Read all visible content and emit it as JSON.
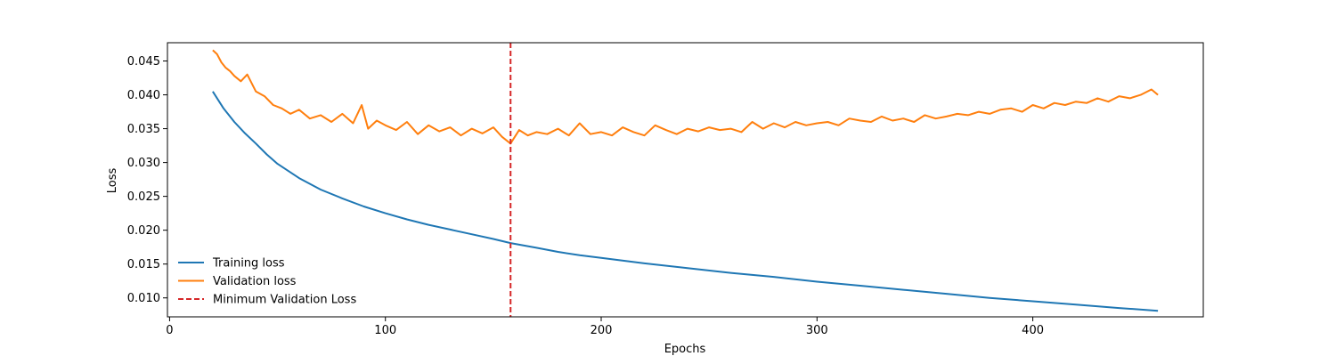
{
  "chart_data": {
    "type": "line",
    "title": "",
    "xlabel": "Epochs",
    "ylabel": "Loss",
    "xlim": [
      -1,
      479
    ],
    "ylim": [
      0.0072,
      0.0477
    ],
    "xticks": [
      0,
      100,
      200,
      300,
      400
    ],
    "yticks": [
      0.01,
      0.015,
      0.02,
      0.025,
      0.03,
      0.035,
      0.04,
      0.045
    ],
    "ytick_labels": [
      "0.010",
      "0.015",
      "0.020",
      "0.025",
      "0.030",
      "0.035",
      "0.040",
      "0.045"
    ],
    "grid": false,
    "legend_position": "lower-left",
    "series": [
      {
        "name": "Training loss",
        "color": "#1f77b4",
        "style": "solid",
        "x": [
          20,
          25,
          30,
          35,
          40,
          45,
          50,
          60,
          70,
          80,
          90,
          100,
          110,
          120,
          130,
          140,
          150,
          158,
          170,
          180,
          190,
          200,
          220,
          240,
          260,
          280,
          300,
          320,
          340,
          360,
          380,
          400,
          420,
          440,
          458
        ],
        "y": [
          0.0405,
          0.038,
          0.036,
          0.0343,
          0.0328,
          0.0312,
          0.0298,
          0.0277,
          0.026,
          0.0247,
          0.0235,
          0.0225,
          0.0216,
          0.0208,
          0.0201,
          0.0194,
          0.0187,
          0.0181,
          0.0174,
          0.0168,
          0.0163,
          0.0159,
          0.0151,
          0.0144,
          0.0137,
          0.0131,
          0.0124,
          0.0118,
          0.0112,
          0.0106,
          0.01,
          0.0095,
          0.009,
          0.0085,
          0.0081
        ]
      },
      {
        "name": "Validation loss",
        "color": "#ff7f0e",
        "style": "solid",
        "x": [
          20,
          22,
          24,
          26,
          28,
          30,
          33,
          36,
          40,
          44,
          48,
          52,
          56,
          60,
          65,
          70,
          75,
          80,
          85,
          89,
          92,
          96,
          100,
          105,
          110,
          115,
          120,
          125,
          130,
          135,
          140,
          145,
          150,
          154,
          158,
          162,
          166,
          170,
          175,
          180,
          185,
          190,
          195,
          200,
          205,
          210,
          215,
          220,
          225,
          230,
          235,
          240,
          245,
          250,
          255,
          260,
          265,
          270,
          275,
          280,
          285,
          290,
          295,
          300,
          305,
          310,
          315,
          320,
          325,
          330,
          335,
          340,
          345,
          350,
          355,
          360,
          365,
          370,
          375,
          380,
          385,
          390,
          395,
          400,
          405,
          410,
          415,
          420,
          425,
          430,
          435,
          440,
          445,
          450,
          455,
          458
        ],
        "y": [
          0.0466,
          0.046,
          0.0448,
          0.044,
          0.0435,
          0.0428,
          0.042,
          0.043,
          0.0405,
          0.0398,
          0.0385,
          0.038,
          0.0372,
          0.0378,
          0.0365,
          0.037,
          0.036,
          0.0372,
          0.0358,
          0.0385,
          0.035,
          0.0362,
          0.0355,
          0.0348,
          0.036,
          0.0342,
          0.0355,
          0.0346,
          0.0352,
          0.034,
          0.035,
          0.0343,
          0.0352,
          0.0338,
          0.0328,
          0.0348,
          0.034,
          0.0345,
          0.0342,
          0.035,
          0.034,
          0.0358,
          0.0342,
          0.0345,
          0.034,
          0.0352,
          0.0345,
          0.034,
          0.0355,
          0.0348,
          0.0342,
          0.035,
          0.0346,
          0.0352,
          0.0348,
          0.035,
          0.0345,
          0.036,
          0.035,
          0.0358,
          0.0352,
          0.036,
          0.0355,
          0.0358,
          0.036,
          0.0355,
          0.0365,
          0.0362,
          0.036,
          0.0368,
          0.0362,
          0.0365,
          0.036,
          0.037,
          0.0365,
          0.0368,
          0.0372,
          0.037,
          0.0375,
          0.0372,
          0.0378,
          0.038,
          0.0375,
          0.0385,
          0.038,
          0.0388,
          0.0385,
          0.039,
          0.0388,
          0.0395,
          0.039,
          0.0398,
          0.0395,
          0.04,
          0.0408,
          0.04
        ]
      },
      {
        "name": "Minimum Validation Loss",
        "color": "#d62728",
        "style": "dashed",
        "vline_x": 158
      }
    ]
  }
}
